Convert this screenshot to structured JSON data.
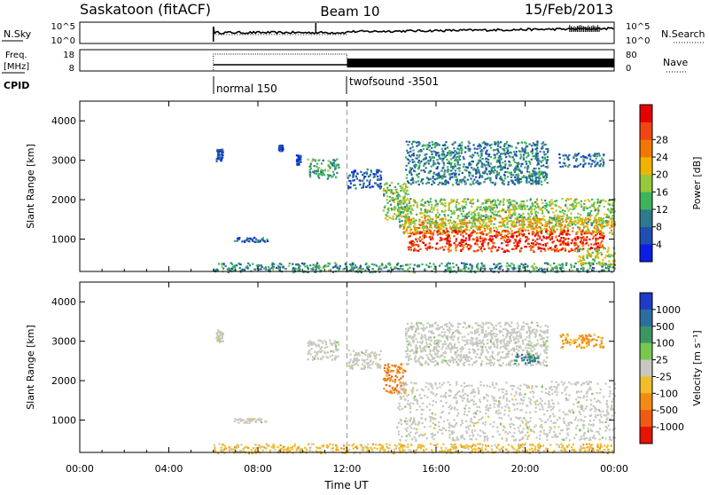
{
  "header": {
    "station": "Saskatoon (fitACF)",
    "beam": "Beam 10",
    "date": "15/Feb/2013"
  },
  "top_panels": {
    "nsky": {
      "left_label": "N.Sky",
      "left_ticks": [
        "10^5",
        "10^0"
      ],
      "right_label": "N.Search",
      "right_ticks": [
        "10^5",
        "10^0"
      ]
    },
    "freq": {
      "left_label_1": "Freq.",
      "left_label_2": "[MHz]",
      "left_ticks": [
        "18",
        "8"
      ],
      "right_label": "Nave",
      "right_ticks": [
        "80",
        "0"
      ]
    },
    "cpid": {
      "label": "CPID",
      "modes": [
        {
          "name": "normal 150",
          "start_hour": 6
        },
        {
          "name": "twofsound -3501",
          "start_hour": 12
        }
      ]
    }
  },
  "chart_data": [
    {
      "type": "heatmap",
      "name": "power",
      "ylabel": "Slant Range [km]",
      "xlabel": "",
      "x_range_hours": [
        0,
        24
      ],
      "ylim": [
        180,
        4500
      ],
      "yticks": [
        1000,
        2000,
        3000,
        4000
      ],
      "colorbar": {
        "label": "Power [dB]",
        "ticks": [
          "4",
          "8",
          "12",
          "16",
          "20",
          "24",
          "28"
        ],
        "colors": [
          "#0a1ee6",
          "#1e4fb4",
          "#2d7a8c",
          "#3cb45a",
          "#96c83c",
          "#f0b400",
          "#f07800",
          "#f04614",
          "#e60000"
        ]
      },
      "regions": [
        {
          "t0": 6.0,
          "t1": 24.0,
          "r0": 180,
          "r1": 420,
          "level": 0.3
        },
        {
          "t0": 6.1,
          "t1": 6.4,
          "r0": 3000,
          "r1": 3300,
          "level": 0.15
        },
        {
          "t0": 6.9,
          "t1": 8.4,
          "r0": 950,
          "r1": 1060,
          "level": 0.2
        },
        {
          "t0": 8.9,
          "t1": 9.1,
          "r0": 3250,
          "r1": 3400,
          "level": 0.1
        },
        {
          "t0": 9.7,
          "t1": 9.9,
          "r0": 2900,
          "r1": 3150,
          "level": 0.1
        },
        {
          "t0": 10.2,
          "t1": 11.6,
          "r0": 2550,
          "r1": 3050,
          "level": 0.35
        },
        {
          "t0": 12.0,
          "t1": 13.5,
          "r0": 2300,
          "r1": 2800,
          "level": 0.15
        },
        {
          "t0": 13.6,
          "t1": 14.7,
          "r0": 1500,
          "r1": 2450,
          "level": 0.45
        },
        {
          "t0": 14.2,
          "t1": 24.0,
          "r0": 1300,
          "r1": 2050,
          "level": 0.45
        },
        {
          "t0": 14.5,
          "t1": 24.0,
          "r0": 1150,
          "r1": 1550,
          "level": 0.65
        },
        {
          "t0": 14.7,
          "t1": 23.5,
          "r0": 700,
          "r1": 1250,
          "level": 0.92
        },
        {
          "t0": 14.6,
          "t1": 21.0,
          "r0": 2400,
          "r1": 3500,
          "level": 0.25
        },
        {
          "t0": 19.5,
          "t1": 20.6,
          "r0": 2450,
          "r1": 2700,
          "level": 0.3
        },
        {
          "t0": 21.5,
          "t1": 23.5,
          "r0": 2850,
          "r1": 3200,
          "level": 0.2
        },
        {
          "t0": 22.3,
          "t1": 24.0,
          "r0": 350,
          "r1": 800,
          "level": 0.5
        }
      ]
    },
    {
      "type": "heatmap",
      "name": "velocity",
      "ylabel": "Slant Range [km]",
      "xlabel": "Time UT",
      "x_range_hours": [
        0,
        24
      ],
      "xticks": [
        "00:00",
        "04:00",
        "08:00",
        "12:00",
        "16:00",
        "20:00",
        "00:00"
      ],
      "ylim": [
        180,
        4500
      ],
      "yticks": [
        1000,
        2000,
        3000,
        4000
      ],
      "colorbar": {
        "label": "Velocity [m s⁻¹]",
        "ticks": [
          "1000",
          "500",
          "100",
          "25",
          "-25",
          "-100",
          "-500",
          "-1000"
        ],
        "colors": [
          "#1e3cc8",
          "#2d6ea0",
          "#3c9664",
          "#78c850",
          "#c8c8c0",
          "#f0be28",
          "#f08c14",
          "#f05a14",
          "#e61400"
        ]
      },
      "regions": [
        {
          "t0": 6.0,
          "t1": 24.0,
          "r0": 180,
          "r1": 420,
          "level": 0.62
        },
        {
          "t0": 6.1,
          "t1": 6.4,
          "r0": 3000,
          "r1": 3300,
          "level": 0.5
        },
        {
          "t0": 6.9,
          "t1": 8.4,
          "r0": 950,
          "r1": 1060,
          "level": 0.5
        },
        {
          "t0": 10.2,
          "t1": 11.6,
          "r0": 2550,
          "r1": 3050,
          "level": 0.5
        },
        {
          "t0": 12.0,
          "t1": 13.5,
          "r0": 2300,
          "r1": 2800,
          "level": 0.5
        },
        {
          "t0": 13.6,
          "t1": 14.6,
          "r0": 1700,
          "r1": 2450,
          "level": 0.78
        },
        {
          "t0": 14.2,
          "t1": 24.0,
          "r0": 500,
          "r1": 2000,
          "level": 0.5
        },
        {
          "t0": 14.6,
          "t1": 21.0,
          "r0": 2400,
          "r1": 3500,
          "level": 0.45
        },
        {
          "t0": 19.5,
          "t1": 20.6,
          "r0": 2450,
          "r1": 2700,
          "level": 0.2
        },
        {
          "t0": 21.5,
          "t1": 23.5,
          "r0": 2850,
          "r1": 3200,
          "level": 0.72
        }
      ]
    }
  ]
}
